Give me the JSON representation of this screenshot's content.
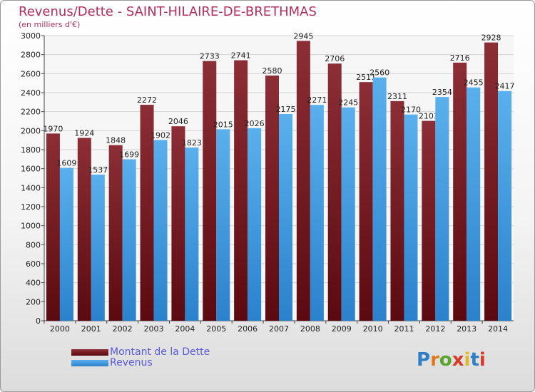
{
  "chart_data": {
    "type": "bar",
    "title": "Revenus/Dette - SAINT-HILAIRE-DE-BRETHMAS",
    "subtitle": "(en milliers d'€)",
    "categories": [
      "2000",
      "2001",
      "2002",
      "2003",
      "2004",
      "2005",
      "2006",
      "2007",
      "2008",
      "2009",
      "2010",
      "2011",
      "2012",
      "2013",
      "2014"
    ],
    "series": [
      {
        "name": "Montant de la Dette",
        "color": "#7a1e24",
        "values": [
          1970,
          1924,
          1848,
          2272,
          2046,
          2733,
          2741,
          2580,
          2945,
          2706,
          2511,
          2311,
          2103,
          2716,
          2928
        ]
      },
      {
        "name": "Revenus",
        "color": "#3d9be2",
        "values": [
          1609,
          1537,
          1699,
          1902,
          1823,
          2015,
          2026,
          2175,
          2271,
          2245,
          2560,
          2170,
          2354,
          2455,
          2417
        ]
      }
    ],
    "ylim": [
      0,
      3000
    ],
    "yticks": [
      0,
      200,
      400,
      600,
      800,
      1000,
      1200,
      1400,
      1600,
      1800,
      2000,
      2200,
      2400,
      2600,
      2800,
      3000
    ],
    "grid": true,
    "legend_position": "bottom-left"
  },
  "logo": {
    "text": "Proxiti",
    "letters": [
      "P",
      "r",
      "o",
      "x",
      "i",
      "t",
      "i"
    ]
  }
}
